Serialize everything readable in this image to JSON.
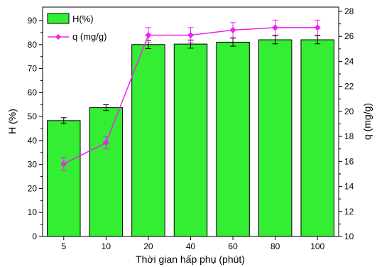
{
  "chart_data": {
    "type": "bar+line",
    "title": "",
    "xlabel": "Thời gian hấp phụ (phút)",
    "ylabel_left": "H (%)",
    "ylabel_right": "q (mg/g)",
    "categories": [
      "5",
      "10",
      "20",
      "40",
      "60",
      "80",
      "100"
    ],
    "y_left": {
      "min": 0,
      "max": 90,
      "ticks": [
        0,
        10,
        20,
        30,
        40,
        50,
        60,
        70,
        80,
        90
      ]
    },
    "y_right": {
      "min": 10,
      "max": 28,
      "ticks": [
        10,
        12,
        14,
        16,
        18,
        20,
        22,
        24,
        26,
        28
      ]
    },
    "grid": false,
    "legend_position": "top-left",
    "series": [
      {
        "name": "H(%)",
        "kind": "bar",
        "axis": "left",
        "color": "#33ee33",
        "values": [
          48.3,
          53.7,
          80.0,
          80.2,
          81.0,
          82.0,
          82.0
        ],
        "errors": [
          1.2,
          1.2,
          1.7,
          1.7,
          1.7,
          1.7,
          1.7
        ]
      },
      {
        "name": "q (mg/g)",
        "kind": "line",
        "axis": "right",
        "color": "#ee22ee",
        "values": [
          15.8,
          17.5,
          26.1,
          26.1,
          26.5,
          26.7,
          26.7
        ],
        "errors": [
          0.5,
          0.5,
          0.6,
          0.6,
          0.6,
          0.6,
          0.6
        ]
      }
    ]
  }
}
